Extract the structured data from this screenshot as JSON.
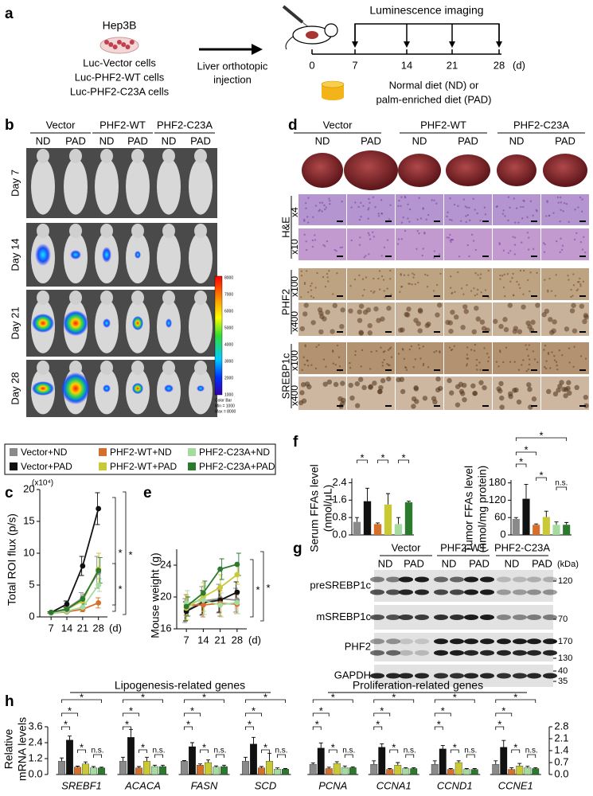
{
  "panel_labels": [
    "a",
    "b",
    "c",
    "d",
    "e",
    "f",
    "g",
    "h"
  ],
  "panel_a": {
    "cell_line": "Hep3B",
    "cells": [
      "Luc-Vector cells",
      "Luc-PHF2-WT cells",
      "Luc-PHF2-C23A cells"
    ],
    "injection": [
      "Liver orthotopic",
      "injection"
    ],
    "imaging": "Luminescence imaging",
    "timeline": [
      "0",
      "7",
      "14",
      "21",
      "28"
    ],
    "timeline_unit": "(d)",
    "diet": [
      "Normal diet (ND) or",
      "palm-enriched diet (PAD)"
    ]
  },
  "panel_b": {
    "groups": [
      "Vector",
      "PHF2-WT",
      "PHF2-C23A"
    ],
    "diets": [
      "ND",
      "PAD",
      "ND",
      "PAD",
      "ND",
      "PAD"
    ],
    "days": [
      "Day 7",
      "Day 14",
      "Day 21",
      "Day 28"
    ],
    "colorbar": {
      "ticks": [
        "8000",
        "7000",
        "6000",
        "5000",
        "4000",
        "3000",
        "2000",
        "1000"
      ],
      "caption": [
        "Color Bar",
        "Min = 1000",
        "Max = 8000"
      ]
    }
  },
  "panel_d": {
    "groups": [
      "Vector",
      "PHF2-WT",
      "PHF2-C23A"
    ],
    "diets": [
      "ND",
      "PAD",
      "ND",
      "PAD",
      "ND",
      "PAD"
    ],
    "stains": [
      {
        "name": "H&E",
        "mags": [
          "x4",
          "x10"
        ]
      },
      {
        "name": "PHF2",
        "mags": [
          "x100",
          "x400"
        ]
      },
      {
        "name": "SREBP1c",
        "mags": [
          "x100",
          "x400"
        ]
      }
    ]
  },
  "panel_g": {
    "groups": [
      "Vector",
      "PHF2-WT",
      "PHF2-C23A"
    ],
    "diets": [
      "ND",
      "PAD",
      "ND",
      "PAD",
      "ND",
      "PAD"
    ],
    "unit": "(kDa)",
    "rows": [
      {
        "name": "preSREBP1c",
        "markers": [
          "120"
        ]
      },
      {
        "name": "mSREBP1c",
        "markers": [
          "70"
        ]
      },
      {
        "name": "PHF2",
        "markers": [
          "170",
          "130"
        ]
      },
      {
        "name": "GAPDH",
        "markers": [
          "40",
          "35"
        ]
      }
    ]
  },
  "chart_data": [
    {
      "type": "line",
      "ylabel": "Total ROI flux (p/s)",
      "y_multiplier": "(x10⁴)",
      "x": [
        7,
        14,
        21,
        28
      ],
      "xlim": [
        2,
        32
      ],
      "xticks": [
        7,
        14,
        21,
        28
      ],
      "xunit": "(d)",
      "ylim": [
        0,
        20
      ],
      "yticks": [
        0,
        5,
        10,
        15,
        20
      ],
      "series": [
        {
          "name": "Vector+ND",
          "color": "#8a8a8a",
          "values": [
            0.7,
            1.3,
            3.0,
            7.0
          ],
          "errors": [
            0.1,
            0.3,
            0.8,
            2.5
          ]
        },
        {
          "name": "Vector+PAD",
          "color": "#111111",
          "values": [
            0.7,
            2.0,
            8.0,
            17.0
          ],
          "errors": [
            0.1,
            0.5,
            1.5,
            2.5
          ]
        },
        {
          "name": "PHF2-WT+ND",
          "color": "#d4702a",
          "values": [
            0.6,
            0.8,
            1.2,
            2.2
          ],
          "errors": [
            0.1,
            0.2,
            0.4,
            0.8
          ]
        },
        {
          "name": "PHF2-WT+PAD",
          "color": "#c9c936",
          "values": [
            0.7,
            1.2,
            2.5,
            7.5
          ],
          "errors": [
            0.1,
            0.3,
            0.8,
            2.5
          ]
        },
        {
          "name": "PHF2-C23A+ND",
          "color": "#a6dba0",
          "values": [
            0.6,
            0.9,
            1.5,
            5.0
          ],
          "errors": [
            0.1,
            0.2,
            0.5,
            1.0
          ]
        },
        {
          "name": "PHF2-C23A+PAD",
          "color": "#2b7a2e",
          "values": [
            0.7,
            1.2,
            2.8,
            7.3
          ],
          "errors": [
            0.1,
            0.3,
            0.8,
            2.0
          ]
        }
      ],
      "significance": [
        "*",
        "*",
        "*"
      ]
    },
    {
      "type": "line",
      "ylabel": "Mouse weight (g)",
      "x": [
        7,
        14,
        21,
        28
      ],
      "xlim": [
        3,
        32
      ],
      "xticks": [
        7,
        14,
        21,
        28
      ],
      "xunit": "(d)",
      "ylim": [
        16,
        26
      ],
      "yticks": [
        16,
        20,
        24
      ],
      "series": [
        {
          "color": "#8a8a8a",
          "values": [
            18.3,
            19.5,
            19.8,
            19.6
          ],
          "errors": [
            1.5,
            1.8,
            1.8,
            1.5
          ]
        },
        {
          "color": "#111111",
          "values": [
            18.2,
            19.3,
            19.6,
            20.6
          ],
          "errors": [
            1.2,
            1.5,
            1.5,
            1.3
          ]
        },
        {
          "color": "#d4702a",
          "values": [
            19.0,
            19.0,
            19.2,
            19.1
          ],
          "errors": [
            1.3,
            1.5,
            1.6,
            1.2
          ]
        },
        {
          "color": "#c9c936",
          "values": [
            18.6,
            20.0,
            21.2,
            22.8
          ],
          "errors": [
            1.5,
            1.8,
            1.6,
            1.2
          ]
        },
        {
          "color": "#a6dba0",
          "values": [
            19.2,
            19.6,
            19.0,
            19.3
          ],
          "errors": [
            1.6,
            1.8,
            1.5,
            1.4
          ]
        },
        {
          "color": "#2b7a2e",
          "values": [
            18.8,
            20.5,
            23.5,
            24.1
          ],
          "errors": [
            1.2,
            1.5,
            1.3,
            1.4
          ]
        }
      ],
      "significance": [
        "*",
        "*"
      ]
    },
    {
      "type": "bar",
      "ylabel": [
        "Serum FFAs level",
        "(nmol/μL)"
      ],
      "values": [
        0.6,
        1.55,
        0.5,
        1.4,
        0.5,
        1.5
      ],
      "errors": [
        0.2,
        0.6,
        0.05,
        0.5,
        0.3,
        0.05
      ],
      "colors": [
        "#8a8a8a",
        "#111111",
        "#d4702a",
        "#c9c936",
        "#a6dba0",
        "#2b7a2e"
      ],
      "ylim": [
        0,
        2.6
      ],
      "yticks": [
        {
          "value": 0,
          "label": "0.0"
        },
        0.8,
        1.6,
        2.4
      ],
      "significance": [
        "*",
        "*",
        "*"
      ]
    },
    {
      "type": "bar",
      "ylabel": [
        "Tumor FFAs level",
        "(nmol/mg protein)"
      ],
      "values": [
        55,
        125,
        35,
        62,
        35,
        35
      ],
      "errors": [
        5,
        50,
        3,
        20,
        10,
        8
      ],
      "colors": [
        "#8a8a8a",
        "#111111",
        "#d4702a",
        "#c9c936",
        "#a6dba0",
        "#2b7a2e"
      ],
      "ylim": [
        0,
        190
      ],
      "yticks": [
        0,
        60,
        120,
        180
      ],
      "significance": [
        "*",
        "*",
        "*",
        "*",
        "n.s."
      ]
    },
    {
      "type": "grouped-bar",
      "group_label": "Lipogenesis-related genes",
      "ylabel": [
        "Relative",
        "mRNA levels"
      ],
      "categories": [
        "SREBF1",
        "ACACA",
        "FASN",
        "SCD"
      ],
      "ylim": [
        0,
        3.6
      ],
      "yticks": [
        {
          "value": 0,
          "label": "0.0"
        },
        1.2,
        2.4,
        3.6
      ],
      "series": [
        {
          "color": "#8a8a8a",
          "values": [
            1.0,
            1.0,
            1.0,
            1.0
          ],
          "errors": [
            0.25,
            0.3,
            0.05,
            0.3
          ]
        },
        {
          "color": "#111111",
          "values": [
            2.6,
            2.8,
            2.1,
            2.3
          ],
          "errors": [
            0.3,
            0.6,
            0.3,
            0.5
          ]
        },
        {
          "color": "#d4702a",
          "values": [
            0.55,
            0.5,
            0.7,
            0.5
          ],
          "errors": [
            0.08,
            0.1,
            0.1,
            0.1
          ]
        },
        {
          "color": "#c9c936",
          "values": [
            0.8,
            1.0,
            0.9,
            1.0
          ],
          "errors": [
            0.15,
            0.3,
            0.2,
            0.6
          ]
        },
        {
          "color": "#a6dba0",
          "values": [
            0.5,
            0.6,
            0.55,
            0.4
          ],
          "errors": [
            0.1,
            0.1,
            0.1,
            0.1
          ]
        },
        {
          "color": "#2b7a2e",
          "values": [
            0.5,
            0.6,
            0.6,
            0.4
          ],
          "errors": [
            0.05,
            0.1,
            0.1,
            0.05
          ]
        }
      ],
      "significance": [
        [
          "*",
          "*",
          "*",
          "*",
          "n.s."
        ],
        [
          "*",
          "*",
          "*",
          "*",
          "n.s."
        ],
        [
          "*",
          "*",
          "*",
          "*",
          "n.s."
        ],
        [
          "*",
          "*",
          "*",
          "*",
          "n.s."
        ]
      ]
    },
    {
      "type": "grouped-bar",
      "group_label": "Proliferation-related genes",
      "categories": [
        "PCNA",
        "CCNA1",
        "CCND1",
        "CCNE1"
      ],
      "y2lim": [
        0,
        2.8
      ],
      "y2ticks": [
        {
          "value": 0,
          "label": "0.0"
        },
        0.7,
        1.4,
        2.1,
        2.8
      ],
      "series": [
        {
          "color": "#8a8a8a",
          "axis": "y2",
          "values": [
            0.6,
            0.6,
            0.6,
            0.6
          ],
          "errors": [
            0.08,
            0.2,
            0.2,
            0.2
          ]
        },
        {
          "color": "#111111",
          "axis": "y2",
          "values": [
            1.55,
            1.6,
            1.5,
            1.6
          ],
          "errors": [
            0.3,
            0.2,
            0.2,
            0.4
          ]
        },
        {
          "color": "#d4702a",
          "axis": "y2",
          "values": [
            0.35,
            0.3,
            0.3,
            0.3
          ],
          "errors": [
            0.08,
            0.05,
            0.05,
            0.1
          ]
        },
        {
          "color": "#c9c936",
          "axis": "y2",
          "values": [
            0.65,
            0.55,
            0.7,
            0.5
          ],
          "errors": [
            0.1,
            0.15,
            0.1,
            0.15
          ]
        },
        {
          "color": "#a6dba0",
          "axis": "y2",
          "values": [
            0.4,
            0.35,
            0.3,
            0.4
          ],
          "errors": [
            0.1,
            0.05,
            0.05,
            0.08
          ]
        },
        {
          "color": "#2b7a2e",
          "axis": "y2",
          "values": [
            0.4,
            0.35,
            0.3,
            0.35
          ],
          "errors": [
            0.05,
            0.05,
            0.05,
            0.05
          ]
        }
      ],
      "significance": [
        [
          "*",
          "*",
          "*",
          "*",
          "n.s."
        ],
        [
          "*",
          "*",
          "*",
          "*",
          "n.s."
        ],
        [
          "*",
          "*",
          "*",
          "*",
          "n.s."
        ],
        [
          "*",
          "*",
          "*",
          "*",
          "n.s."
        ]
      ]
    }
  ]
}
